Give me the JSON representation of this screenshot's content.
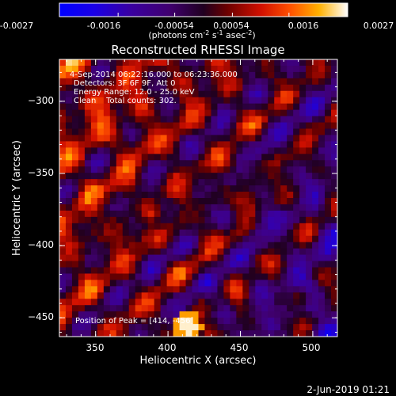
{
  "colorbar": {
    "ticks": [
      "-0.0027",
      "-0.0016",
      "-0.00054",
      "0.00054",
      "0.0016",
      "0.0027"
    ],
    "unit_prefix": "(photons cm",
    "unit_exp1": "-2",
    "unit_s": " s",
    "unit_exp2": "-1",
    "unit_asec": " asec",
    "unit_exp3": "-2",
    "unit_suffix": ")",
    "range": [
      -0.0027,
      0.0027
    ]
  },
  "chart_data": {
    "type": "heatmap",
    "title": "Reconstructed RHESSI Image",
    "xlabel": "Heliocentric X (arcsec)",
    "ylabel": "Heliocentric Y (arcsec)",
    "xlim": [
      325,
      517
    ],
    "ylim": [
      -463,
      -271
    ],
    "xticks": [
      350,
      400,
      450,
      500
    ],
    "yticks": [
      -300,
      -350,
      -400,
      -450
    ],
    "xtick_labels": [
      "350",
      "400",
      "450",
      "500"
    ],
    "ytick_labels": [
      "−300",
      "−350",
      "−400",
      "−450"
    ],
    "peak": {
      "x": 414,
      "y": -456
    },
    "colormap": "RHESSI blue-purple-red-yellow-white"
  },
  "annotations": {
    "time": "4-Sep-2014 06:22:16.000 to 06:23:36.000",
    "detectors": "Detectors: 3F 6F 9F, Att 0",
    "energy": "Energy Range: 12.0 - 25.0 keV",
    "clean": "Clean    Total counts: 302.",
    "peak": "Position of Peak = [414, -456]"
  },
  "footer": {
    "date": "2-Jun-2019 01:21"
  }
}
